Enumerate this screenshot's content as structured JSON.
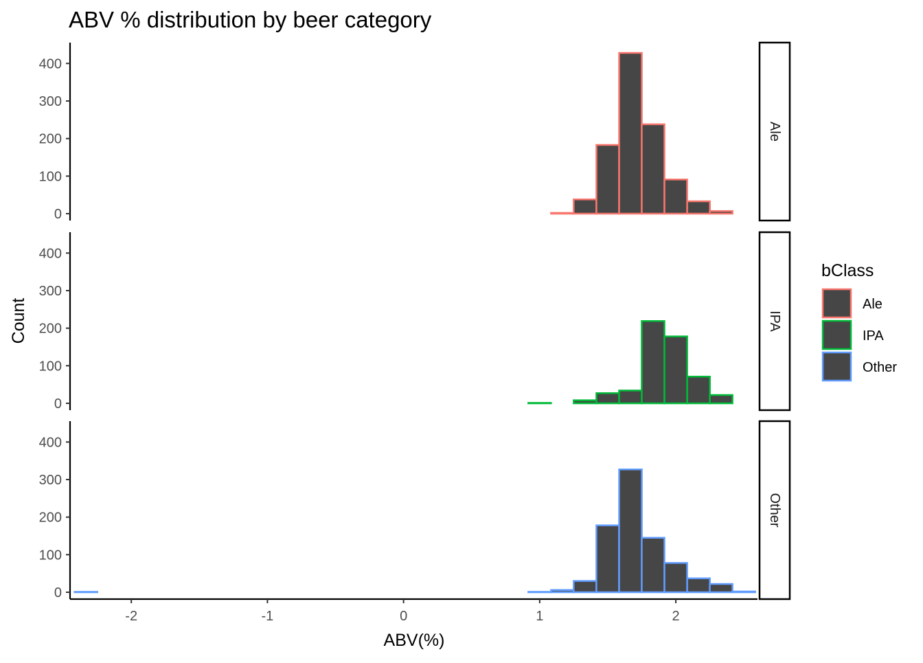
{
  "chart_data": {
    "type": "bar",
    "title": "ABV % distribution by beer category",
    "xlabel": "ABV(%)",
    "ylabel": "Count",
    "bin_width": 0.1667,
    "xlim": [
      -2.45,
      2.6
    ],
    "ylim": [
      0,
      450
    ],
    "x_ticks": [
      -2,
      -1,
      0,
      1,
      2
    ],
    "y_ticks": [
      0,
      100,
      200,
      300,
      400
    ],
    "grid": false,
    "legend": {
      "title": "bClass",
      "placement": "right",
      "entries": [
        "Ale",
        "IPA",
        "Other"
      ]
    },
    "bin_centers": [
      -2.333,
      -2.167,
      -2.0,
      -1.833,
      -1.667,
      -1.5,
      -1.333,
      -1.167,
      -1.0,
      -0.833,
      -0.667,
      -0.5,
      -0.333,
      -0.167,
      0.0,
      0.167,
      0.333,
      0.5,
      0.667,
      0.833,
      1.0,
      1.167,
      1.333,
      1.5,
      1.667,
      1.833,
      2.0,
      2.167,
      2.333,
      2.5
    ],
    "series": [
      {
        "name": "Ale",
        "color": "#F8766D",
        "values": [
          0,
          0,
          0,
          0,
          0,
          0,
          0,
          0,
          0,
          0,
          0,
          0,
          0,
          0,
          0,
          0,
          0,
          0,
          0,
          0,
          0,
          2,
          38,
          183,
          428,
          238,
          91,
          33,
          7,
          0
        ]
      },
      {
        "name": "IPA",
        "color": "#00BA38",
        "values": [
          0,
          0,
          0,
          0,
          0,
          0,
          0,
          0,
          0,
          0,
          0,
          0,
          0,
          0,
          0,
          0,
          0,
          0,
          0,
          0,
          1,
          0,
          8,
          27,
          34,
          219,
          178,
          71,
          22,
          0
        ]
      },
      {
        "name": "Other",
        "color": "#619CFF",
        "values": [
          1,
          0,
          0,
          0,
          0,
          0,
          0,
          0,
          0,
          0,
          0,
          0,
          0,
          0,
          0,
          0,
          0,
          0,
          0,
          0,
          1,
          6,
          30,
          178,
          327,
          145,
          78,
          37,
          22,
          2
        ]
      }
    ],
    "fill_color": "#464646"
  }
}
